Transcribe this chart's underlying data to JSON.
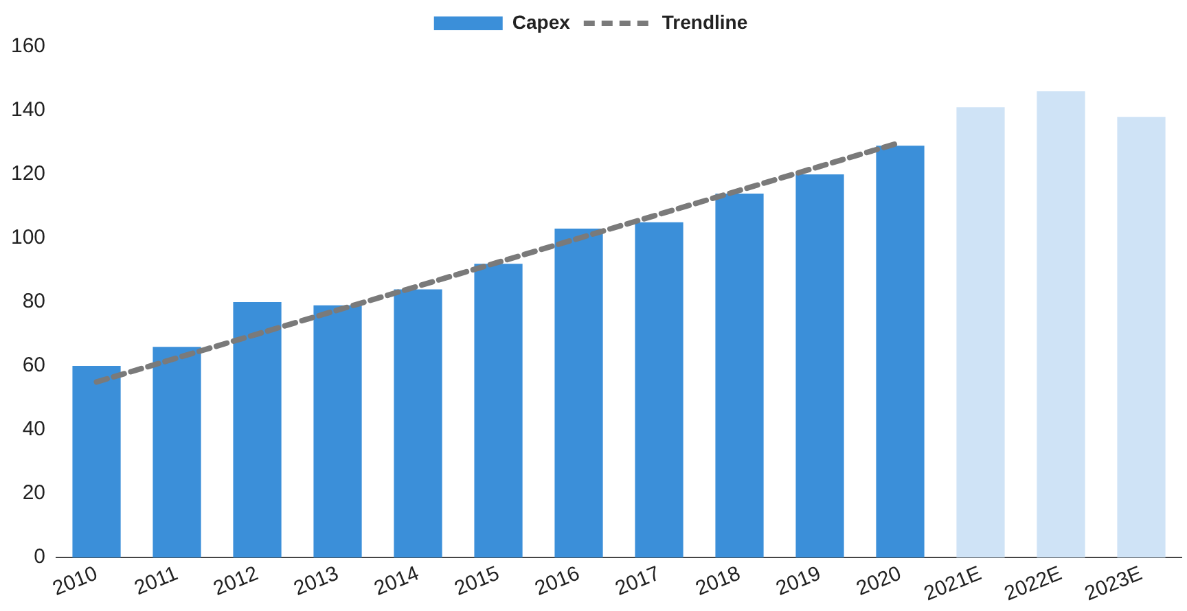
{
  "chart_data": {
    "type": "bar",
    "categories": [
      "2010",
      "2011",
      "2012",
      "2013",
      "2014",
      "2015",
      "2016",
      "2017",
      "2018",
      "2019",
      "2020",
      "2021E",
      "2022E",
      "2023E"
    ],
    "series": [
      {
        "name": "Capex",
        "color": "#3b8fd9",
        "colors": [
          "#3b8fd9",
          "#3b8fd9",
          "#3b8fd9",
          "#3b8fd9",
          "#3b8fd9",
          "#3b8fd9",
          "#3b8fd9",
          "#3b8fd9",
          "#3b8fd9",
          "#3b8fd9",
          "#3b8fd9",
          "#cfe3f6",
          "#cfe3f6",
          "#cfe3f6"
        ],
        "values": [
          60,
          66,
          80,
          79,
          84,
          92,
          103,
          105,
          114,
          120,
          129,
          141,
          146,
          138
        ]
      },
      {
        "name": "Trendline",
        "type": "line",
        "color": "#7a7a7a",
        "line_style": "dashed",
        "values": [
          55,
          62.5,
          70,
          77.5,
          85,
          92.5,
          100,
          107.5,
          115,
          122.5,
          130,
          null,
          null,
          null
        ]
      }
    ],
    "ylim": [
      0,
      160
    ],
    "yticks": [
      0,
      20,
      40,
      60,
      80,
      100,
      120,
      140,
      160
    ],
    "grid": false,
    "legend": "top"
  }
}
